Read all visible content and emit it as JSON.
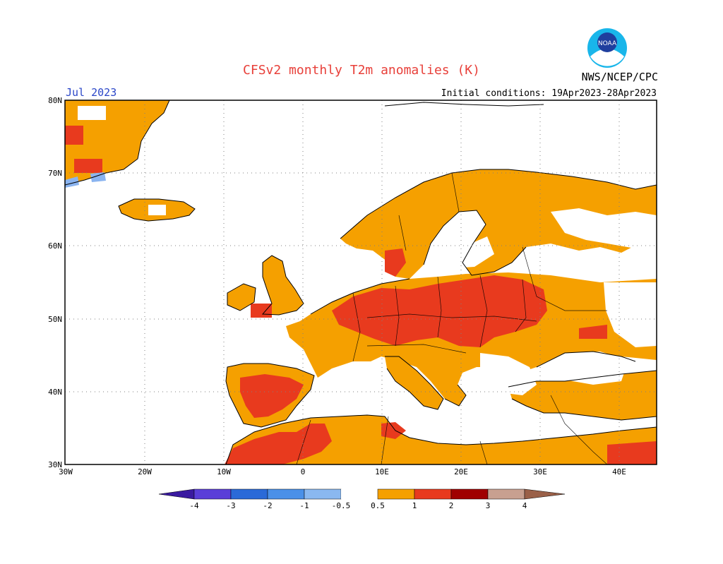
{
  "title": "CFSv2 monthly T2m anomalies (K)",
  "agency": "NWS/NCEP/CPC",
  "logo_text": "NOAA",
  "month": "Jul 2023",
  "initial_conditions": "Initial conditions: 19Apr2023-28Apr2023",
  "colors": {
    "land": "#f5a000",
    "strong": "#e83a1e",
    "very_strong": "#c80000",
    "cool": "#8ab4f0",
    "coast": "#000000",
    "grid": "#808080"
  },
  "lat_labels": [
    "80N",
    "70N",
    "60N",
    "50N",
    "40N",
    "30N"
  ],
  "lon_labels": [
    "30W",
    "20W",
    "10W",
    "0",
    "10E",
    "20E",
    "30E",
    "40E"
  ],
  "colorbar": {
    "labels": [
      "-4",
      "-3",
      "-2",
      "-1",
      "-0.5",
      "0.5",
      "1",
      "2",
      "3",
      "4"
    ],
    "colors": [
      "#3a1aa0",
      "#5a3ed8",
      "#2a6ad8",
      "#4a90e8",
      "#8ab8f0",
      "#ffffff",
      "#f5a000",
      "#e83a1e",
      "#a00000",
      "#c8a090",
      "#9a6048"
    ]
  }
}
